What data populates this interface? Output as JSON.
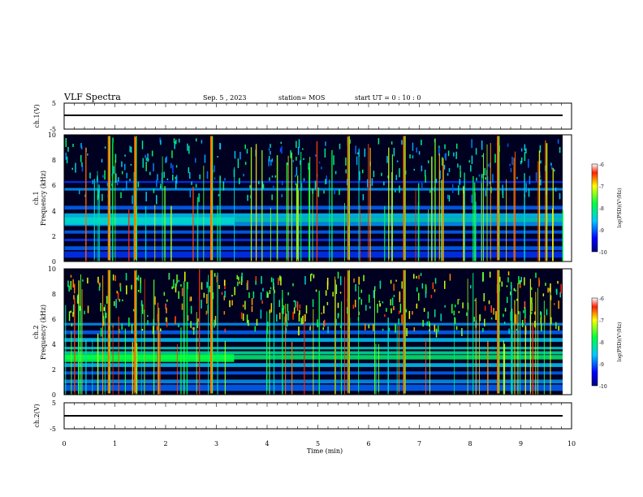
{
  "header": {
    "title": "VLF Spectra",
    "date": "Sep. 5 , 2023",
    "station": "station= MOS",
    "start": "start  UT =   0  : 10 : 0"
  },
  "chart_data": [
    {
      "type": "line",
      "ylabel": "ch.1(V)",
      "ylim": [
        -5,
        5
      ],
      "yticks": [
        "5",
        "-5"
      ],
      "series": [
        {
          "x": [
            0,
            9.83
          ],
          "y": [
            0,
            0
          ]
        }
      ]
    },
    {
      "type": "heatmap",
      "ylabel_line1": "ch.1",
      "ylabel_line2": "Frequency  (kHz)",
      "ylim": [
        0,
        10
      ],
      "yticks": [
        "0",
        "2",
        "4",
        "6",
        "8",
        "10"
      ],
      "colorbar": {
        "label": "log(PSD)(V²/Hz)",
        "ticks": [
          "-6",
          "-7",
          "-8",
          "-9",
          "-10"
        ],
        "range": [
          -10,
          -6
        ]
      }
    },
    {
      "type": "heatmap",
      "ylabel_line1": "ch.2",
      "ylabel_line2": "Frequency  (kHz)",
      "ylim": [
        0,
        10
      ],
      "yticks": [
        "0",
        "2",
        "4",
        "6",
        "8",
        "10"
      ],
      "colorbar": {
        "label": "log(PSD)(V²/Hz)",
        "ticks": [
          "-6",
          "-7",
          "-8",
          "-9",
          "-10"
        ],
        "range": [
          -10,
          -6
        ]
      }
    },
    {
      "type": "line",
      "ylabel": "ch.2(V)",
      "ylim": [
        -5,
        5
      ],
      "yticks": [
        "5",
        "-5"
      ],
      "series": [
        {
          "x": [
            0,
            9.83
          ],
          "y": [
            0,
            0
          ]
        }
      ]
    }
  ],
  "xaxis": {
    "label": "Time  (min)",
    "xlim": [
      0,
      10
    ],
    "ticks": [
      "0",
      "1",
      "2",
      "3",
      "4",
      "5",
      "6",
      "7",
      "8",
      "9",
      "10"
    ]
  }
}
